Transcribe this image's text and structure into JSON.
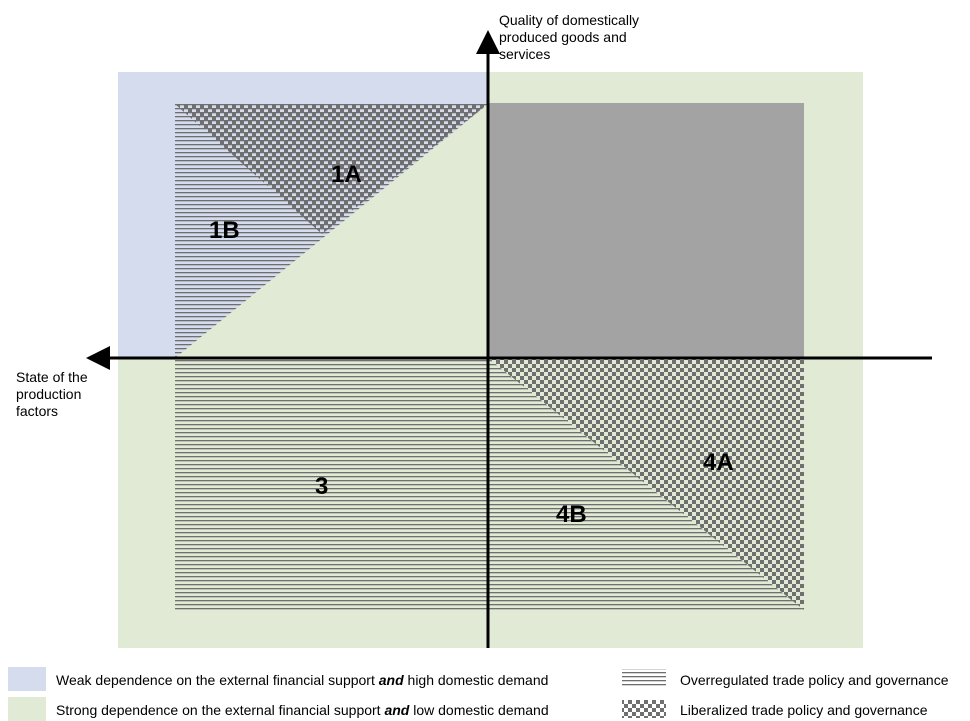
{
  "axes": {
    "y_label": "Quality of domestically produced goods and services",
    "x_label": "State of the production factors"
  },
  "regions": {
    "r1A": "1A",
    "r1B": "1B",
    "r3": "3",
    "r4A": "4A",
    "r4B": "4B"
  },
  "legend": {
    "blue": {
      "pre": "Weak dependence on the external financial support ",
      "em": "and",
      "post": " high domestic demand",
      "color": "#d5dcee"
    },
    "green": {
      "pre": "Strong dependence on the external financial support ",
      "em": "and",
      "post": " low domestic demand",
      "color": "#e1ead4"
    },
    "striped": "Overregulated trade policy and governance",
    "checkered": "Liberalized trade policy and governance"
  },
  "colors": {
    "blue_bg": "#d5dcee",
    "green_bg": "#e1ead4",
    "gray_block": "#a3a3a3",
    "stripe": "#6f6f6f",
    "check": "#6f6f6f"
  }
}
